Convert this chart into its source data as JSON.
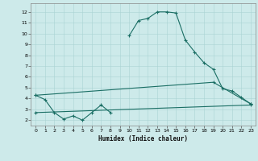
{
  "xlabel": "Humidex (Indice chaleur)",
  "bg_color": "#cdeaea",
  "line_color": "#1a6e64",
  "xlim": [
    -0.5,
    23.5
  ],
  "ylim": [
    1.5,
    12.8
  ],
  "xticks": [
    0,
    1,
    2,
    3,
    4,
    5,
    6,
    7,
    8,
    9,
    10,
    11,
    12,
    13,
    14,
    15,
    16,
    17,
    18,
    19,
    20,
    21,
    22,
    23
  ],
  "yticks": [
    2,
    3,
    4,
    5,
    6,
    7,
    8,
    9,
    10,
    11,
    12
  ],
  "series1_seg1_x": [
    0,
    1,
    2,
    3,
    4,
    5,
    6,
    7,
    8
  ],
  "series1_seg1_y": [
    4.3,
    3.9,
    2.7,
    2.1,
    2.4,
    2.0,
    2.7,
    3.4,
    2.7
  ],
  "series1_seg2_x": [
    10,
    11,
    12,
    13,
    14,
    15,
    16,
    17,
    18,
    19,
    20,
    21,
    22,
    23
  ],
  "series1_seg2_y": [
    9.8,
    11.2,
    11.4,
    12.0,
    12.0,
    11.9,
    9.4,
    8.3,
    7.3,
    6.7,
    4.9,
    4.7,
    4.1,
    3.5
  ],
  "series2_x": [
    0,
    19,
    23
  ],
  "series2_y": [
    4.3,
    5.5,
    3.5
  ],
  "series3_x": [
    0,
    23
  ],
  "series3_y": [
    2.7,
    3.4
  ]
}
